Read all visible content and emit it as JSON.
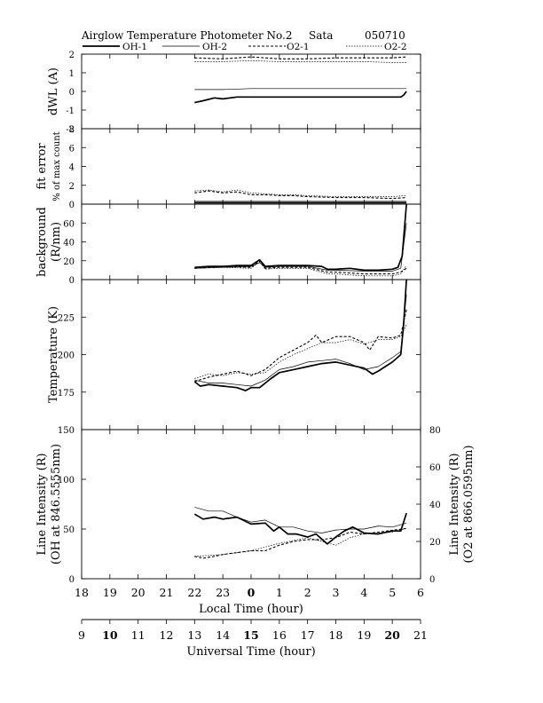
{
  "header": {
    "title": "Airglow Temperature Photometer No.2",
    "station": "Sata",
    "date": "050710"
  },
  "legend": [
    {
      "name": "OH-1",
      "style": "solid-thick"
    },
    {
      "name": "OH-2",
      "style": "solid-thin"
    },
    {
      "name": "O2-1",
      "style": "dashed"
    },
    {
      "name": "O2-2",
      "style": "dotted"
    }
  ],
  "chart_data": [
    {
      "type": "line",
      "panel": "dWL",
      "ylabel": "dWL (A)",
      "ylim": [
        -2,
        2
      ],
      "yticks": [
        "-2",
        "-1",
        "0",
        "1",
        "2"
      ],
      "x_unit": "Local Time (hour), continuous 18-30",
      "series": [
        {
          "name": "OH-1",
          "x": [
            22.0,
            22.3,
            22.7,
            23.0,
            23.5,
            24.0,
            24.5,
            25.0,
            26.0,
            27.0,
            27.5,
            28.0,
            28.5,
            28.8,
            28.9,
            29.0,
            29.05,
            29.1,
            29.2,
            29.25,
            29.3,
            29.4,
            29.5
          ],
          "y": [
            -0.6,
            -0.5,
            -0.35,
            -0.4,
            -0.3,
            -0.3,
            -0.3,
            -0.3,
            -0.3,
            -0.3,
            -0.3,
            -0.3,
            -0.3,
            -0.3,
            -0.3,
            -0.3,
            -0.3,
            -0.3,
            -0.3,
            -0.3,
            -0.3,
            -0.2,
            0.0
          ]
        },
        {
          "name": "OH-2",
          "x": [
            22.0,
            23.0,
            24.0,
            25.0,
            26.0,
            27.0,
            28.0,
            29.0,
            29.5
          ],
          "y": [
            0.1,
            0.1,
            0.15,
            0.15,
            0.15,
            0.15,
            0.15,
            0.15,
            0.15
          ]
        },
        {
          "name": "O2-1",
          "x": [
            22.0,
            23.0,
            24.0,
            25.0,
            26.0,
            27.0,
            28.0,
            29.0,
            29.5
          ],
          "y": [
            1.8,
            1.75,
            1.85,
            1.75,
            1.75,
            1.8,
            1.8,
            1.8,
            1.85
          ]
        },
        {
          "name": "O2-2",
          "x": [
            22.0,
            23.0,
            24.0,
            25.0,
            26.0,
            27.0,
            28.0,
            29.0,
            29.5
          ],
          "y": [
            1.6,
            1.6,
            1.65,
            1.6,
            1.6,
            1.6,
            1.6,
            1.55,
            1.55
          ]
        }
      ]
    },
    {
      "type": "line",
      "panel": "fit error",
      "ylabel": "fit error",
      "ylabel2": "% of max count",
      "ylim": [
        0,
        8
      ],
      "yticks": [
        "0",
        "2",
        "4",
        "6",
        "8"
      ],
      "series": [
        {
          "name": "OH-1",
          "x": [
            22.0,
            24.0,
            26.0,
            28.0,
            29.5
          ],
          "y": [
            0.15,
            0.15,
            0.15,
            0.15,
            0.15
          ]
        },
        {
          "name": "OH-2",
          "x": [
            22.0,
            24.0,
            26.0,
            28.0,
            29.5
          ],
          "y": [
            0.3,
            0.3,
            0.3,
            0.3,
            0.3
          ]
        },
        {
          "name": "O2-1",
          "x": [
            22.0,
            22.5,
            23.0,
            23.5,
            24.0,
            24.5,
            25.0,
            25.5,
            26.0,
            27.0,
            28.0,
            29.0,
            29.5
          ],
          "y": [
            1.2,
            1.4,
            1.2,
            1.3,
            1.0,
            1.0,
            0.9,
            0.9,
            0.8,
            0.7,
            0.7,
            0.6,
            0.7
          ]
        },
        {
          "name": "O2-2",
          "x": [
            22.0,
            22.5,
            23.0,
            23.5,
            24.0,
            24.5,
            25.0,
            25.5,
            26.0,
            27.0,
            28.0,
            29.0,
            29.5
          ],
          "y": [
            1.4,
            1.5,
            1.3,
            1.5,
            1.2,
            1.1,
            1.0,
            1.0,
            0.9,
            0.8,
            0.8,
            0.8,
            0.9
          ]
        }
      ]
    },
    {
      "type": "line",
      "panel": "background",
      "ylabel": "background",
      "ylabel2": "(R/nm)",
      "ylim": [
        0,
        80
      ],
      "yticks": [
        "0",
        "20",
        "40",
        "60"
      ],
      "series": [
        {
          "name": "OH-1",
          "x": [
            22.0,
            22.5,
            23.0,
            23.5,
            24.0,
            24.3,
            24.5,
            25.0,
            25.5,
            26.0,
            26.5,
            26.7,
            27.0,
            27.5,
            28.0,
            28.5,
            29.0,
            29.2,
            29.35,
            29.5
          ],
          "y": [
            13,
            14,
            14,
            15,
            15,
            21,
            14,
            15,
            15,
            15,
            14,
            11,
            11,
            12,
            10,
            10,
            11,
            13,
            25,
            80
          ]
        },
        {
          "name": "OH-2",
          "x": [
            22.0,
            23.0,
            24.0,
            24.3,
            24.5,
            25.0,
            26.0,
            26.7,
            27.0,
            28.0,
            29.0,
            29.3,
            29.5
          ],
          "y": [
            12,
            13,
            14,
            18,
            13,
            14,
            14,
            10,
            10,
            9,
            9,
            12,
            60
          ]
        },
        {
          "name": "O2-1",
          "x": [
            22.0,
            23.0,
            24.0,
            24.3,
            24.5,
            25.0,
            26.0,
            26.7,
            27.0,
            28.0,
            29.0,
            29.3,
            29.5
          ],
          "y": [
            12,
            14,
            13,
            20,
            12,
            13,
            13,
            8,
            8,
            6,
            6,
            8,
            12
          ]
        },
        {
          "name": "O2-2",
          "x": [
            22.0,
            23.0,
            24.0,
            24.3,
            24.5,
            25.0,
            26.0,
            26.7,
            27.0,
            28.0,
            29.0,
            29.3,
            29.5
          ],
          "y": [
            12,
            13,
            12,
            19,
            11,
            12,
            12,
            6,
            6,
            4,
            4,
            6,
            15
          ]
        }
      ]
    },
    {
      "type": "line",
      "panel": "Temperature",
      "ylabel": "Temperature (K)",
      "ylim": [
        150,
        250
      ],
      "yticks": [
        "175",
        "200",
        "225"
      ],
      "series": [
        {
          "name": "OH-1",
          "x": [
            22.0,
            22.2,
            22.5,
            23.0,
            23.5,
            23.8,
            24.0,
            24.3,
            24.7,
            25.0,
            25.5,
            26.0,
            26.5,
            27.0,
            27.5,
            28.0,
            28.3,
            28.5,
            29.0,
            29.3,
            29.4,
            29.5
          ],
          "y": [
            182,
            179,
            180,
            179,
            178,
            176,
            178,
            178,
            184,
            188,
            190,
            192,
            194,
            195,
            193,
            191,
            187,
            189,
            195,
            200,
            220,
            250
          ]
        },
        {
          "name": "OH-2",
          "x": [
            22.0,
            22.5,
            23.0,
            23.5,
            24.0,
            24.5,
            25.0,
            25.5,
            26.0,
            26.5,
            27.0,
            27.5,
            28.0,
            28.5,
            29.0,
            29.3,
            29.5
          ],
          "y": [
            183,
            181,
            181,
            180,
            179,
            183,
            190,
            192,
            195,
            196,
            197,
            194,
            190,
            192,
            198,
            202,
            240
          ]
        },
        {
          "name": "O2-1",
          "x": [
            22.0,
            22.5,
            23.0,
            23.5,
            24.0,
            24.5,
            25.0,
            25.5,
            26.0,
            26.3,
            26.5,
            27.0,
            27.5,
            28.0,
            28.2,
            28.5,
            29.0,
            29.3,
            29.5
          ],
          "y": [
            182,
            185,
            187,
            189,
            186,
            190,
            198,
            203,
            208,
            213,
            208,
            212,
            212,
            208,
            203,
            212,
            211,
            213,
            230
          ]
        },
        {
          "name": "O2-2",
          "x": [
            22.0,
            22.5,
            23.0,
            23.5,
            24.0,
            24.5,
            25.0,
            25.5,
            26.0,
            26.5,
            27.0,
            27.5,
            28.0,
            28.5,
            29.0,
            29.3,
            29.5
          ],
          "y": [
            184,
            187,
            186,
            188,
            187,
            188,
            195,
            200,
            204,
            208,
            208,
            210,
            207,
            210,
            210,
            212,
            220
          ]
        }
      ]
    },
    {
      "type": "line",
      "panel": "Line Intensity",
      "ylabel": "Line Intensity (R)",
      "ylabel2": "(OH at 846.5555nm)",
      "ylabel_right": "Line Intensity (R)",
      "ylabel_right2": "(O2 at 866.0595nm)",
      "ylim": [
        0,
        150
      ],
      "yticks": [
        "0",
        "50",
        "100",
        "150"
      ],
      "ylim_right": [
        0,
        80
      ],
      "yticks_right": [
        "0",
        "20",
        "40",
        "60",
        "80"
      ],
      "series": [
        {
          "name": "OH-1",
          "axis": "left",
          "x": [
            22.0,
            22.3,
            22.7,
            23.0,
            23.5,
            24.0,
            24.5,
            24.8,
            25.0,
            25.3,
            25.6,
            26.0,
            26.3,
            26.7,
            27.0,
            27.3,
            27.6,
            28.0,
            28.5,
            29.0,
            29.3,
            29.5
          ],
          "y": [
            65,
            60,
            62,
            60,
            62,
            55,
            56,
            48,
            52,
            45,
            45,
            42,
            45,
            35,
            42,
            48,
            52,
            46,
            45,
            48,
            48,
            66
          ]
        },
        {
          "name": "OH-2",
          "axis": "left",
          "x": [
            22.0,
            22.5,
            23.0,
            23.5,
            24.0,
            24.5,
            25.0,
            25.5,
            26.0,
            26.5,
            27.0,
            27.5,
            28.0,
            28.5,
            29.0,
            29.5
          ],
          "y": [
            72,
            68,
            68,
            62,
            57,
            59,
            52,
            52,
            48,
            46,
            49,
            50,
            50,
            53,
            52,
            56
          ]
        },
        {
          "name": "O2-1",
          "axis": "right",
          "x": [
            22.0,
            22.3,
            22.7,
            23.0,
            23.5,
            24.0,
            24.5,
            25.0,
            25.5,
            26.0,
            26.5,
            27.0,
            27.5,
            28.0,
            28.5,
            29.0,
            29.5
          ],
          "y": [
            12,
            11,
            12,
            13,
            14,
            15,
            15,
            18,
            20,
            21,
            21,
            22,
            25,
            24,
            25,
            26,
            27
          ]
        },
        {
          "name": "O2-2",
          "axis": "right",
          "x": [
            22.0,
            23.0,
            24.0,
            25.0,
            26.0,
            26.5,
            27.0,
            27.5,
            28.0,
            29.0,
            29.5
          ],
          "y": [
            12,
            13,
            15,
            19,
            22,
            20,
            18,
            22,
            24,
            25,
            27
          ]
        }
      ]
    }
  ],
  "xaxis_local": {
    "label": "Local Time (hour)",
    "ticks": [
      "18",
      "19",
      "20",
      "21",
      "22",
      "23",
      "0",
      "1",
      "2",
      "3",
      "4",
      "5",
      "6"
    ],
    "bold_ticks": [
      "0"
    ],
    "xlim": [
      18,
      30
    ]
  },
  "xaxis_ut": {
    "label": "Universal Time (hour)",
    "ticks": [
      "9",
      "10",
      "11",
      "12",
      "13",
      "14",
      "15",
      "16",
      "17",
      "18",
      "19",
      "20",
      "21"
    ],
    "upper_ticks": [
      "13",
      "14",
      "15",
      "16",
      "17",
      "18",
      "19",
      "20",
      "21"
    ],
    "bold_ticks": [
      "10",
      "15",
      "20"
    ],
    "xlim": [
      9,
      21
    ]
  }
}
